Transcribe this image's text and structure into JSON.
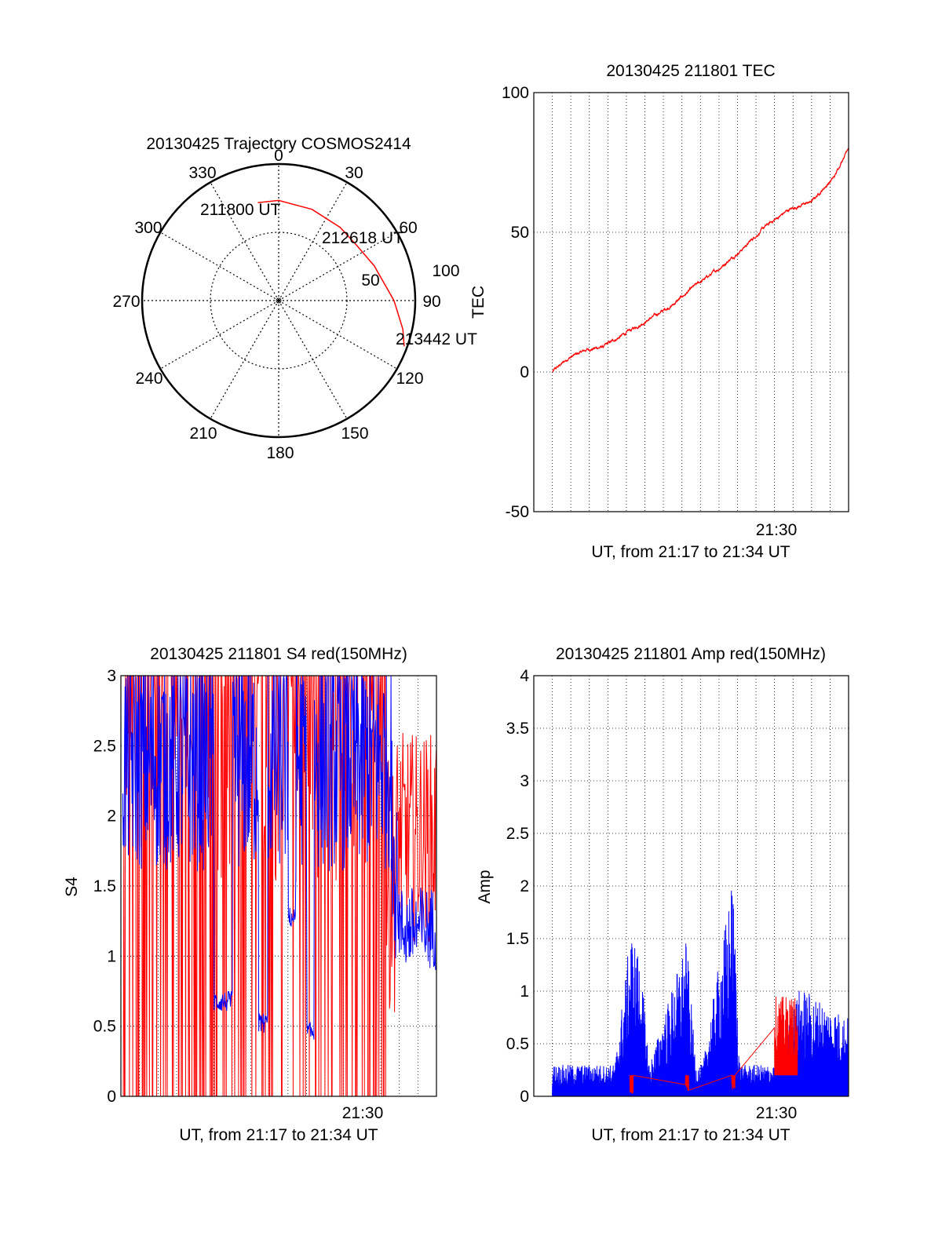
{
  "colors": {
    "red": "#ff0000",
    "blue": "#0000ff",
    "axis": "#000000",
    "grid": "#000000"
  },
  "chart_data": [
    {
      "id": "polar",
      "type": "polar-trajectory",
      "title": "20130425 Trajectory COSMOS2414",
      "angle_labels": [
        "0",
        "30",
        "60",
        "90",
        "120",
        "150",
        "180",
        "210",
        "240",
        "270",
        "300",
        "330"
      ],
      "radius_labels": [
        "50",
        "100"
      ],
      "axis_label": "TEC",
      "points": [
        {
          "label": "211800 UT",
          "azimuth": 330,
          "zenith": 67
        },
        {
          "label": "212618 UT",
          "azimuth": 50,
          "zenith": 64
        },
        {
          "label": "213442 UT",
          "azimuth": 110,
          "zenith": 88
        }
      ],
      "track": [
        [
          348,
          66
        ],
        [
          0,
          66
        ],
        [
          20,
          64
        ],
        [
          40,
          63
        ],
        [
          55,
          63
        ],
        [
          70,
          67
        ],
        [
          90,
          76
        ],
        [
          103,
          84
        ],
        [
          110,
          88
        ]
      ],
      "color": "red"
    },
    {
      "id": "tec",
      "type": "line",
      "title": "20130425 211801 TEC",
      "xlabel": "UT, from 21:17 to 21:34 UT",
      "ylabel": "TEC",
      "xlim_minutes": [
        21.0,
        34.6
      ],
      "ylim": [
        -50,
        100
      ],
      "yticks": [
        -50,
        0,
        50,
        100
      ],
      "xticks": [
        {
          "t": 30,
          "label": "21:30"
        }
      ],
      "series": [
        {
          "color": "red",
          "x": [
            21.8,
            22.5,
            23.3,
            24.0,
            25.0,
            26.0,
            27.0,
            28.0,
            29.0,
            30.0,
            31.0,
            32.0,
            33.0,
            34.0,
            34.6
          ],
          "y": [
            0,
            5,
            8,
            9,
            14,
            19,
            24,
            31,
            37,
            44,
            52,
            58,
            61,
            70,
            81
          ]
        }
      ]
    },
    {
      "id": "s4",
      "type": "line",
      "title": "20130425 211801 S4 red(150MHz)",
      "xlabel": "UT, from 21:17 to 21:34 UT",
      "ylabel": "S4",
      "xlim_minutes": [
        17.0,
        34.0
      ],
      "ylim": [
        0,
        3
      ],
      "yticks": [
        "0",
        "0.5",
        "1",
        "1.5",
        "2",
        "2.5",
        "3"
      ],
      "xticks": [
        {
          "t": 30,
          "label": "21:30"
        }
      ],
      "series": [
        {
          "name": "",
          "color": "red",
          "x": [
            17.1,
            31.4
          ],
          "y": [
            0,
            3
          ]
        },
        {
          "name": "",
          "color": "blue",
          "x": [
            17.1,
            34.0
          ],
          "y": [
            0.45,
            3
          ]
        }
      ]
    },
    {
      "id": "amp",
      "type": "line",
      "title": "20130425 211801 Amp red(150MHz)",
      "xlabel": "UT, from 21:17 to 21:34 UT",
      "ylabel": "Amp",
      "xlim_minutes": [
        21.0,
        34.6
      ],
      "ylim": [
        0,
        4
      ],
      "yticks": [
        "0",
        "0.5",
        "1",
        "1.5",
        "2",
        "2.5",
        "3",
        "3.5",
        "4"
      ],
      "xticks": [
        {
          "t": 30,
          "label": "21:30"
        }
      ],
      "series": [
        {
          "name": "",
          "color": "blue",
          "x": [
            21.8,
            24.5,
            25.2,
            25.6,
            26.0,
            27.6,
            28.0,
            28.3,
            29.6,
            29.9,
            30.3,
            31.0,
            31.5,
            32.5,
            33.5,
            34.6
          ],
          "y": [
            0.3,
            0.3,
            1.6,
            1.3,
            0.3,
            1.5,
            0.3,
            0.3,
            2.1,
            0.3,
            0.3,
            0.3,
            0.3,
            1.05,
            0.9,
            0.75
          ]
        },
        {
          "name": "",
          "color": "red",
          "x": [
            25.2,
            27.6,
            29.6,
            31.4,
            31.6,
            31.9,
            32.3
          ],
          "y": [
            0.05,
            0.1,
            0.15,
            0.6,
            0.95,
            0.8,
            0.5
          ]
        }
      ]
    }
  ]
}
